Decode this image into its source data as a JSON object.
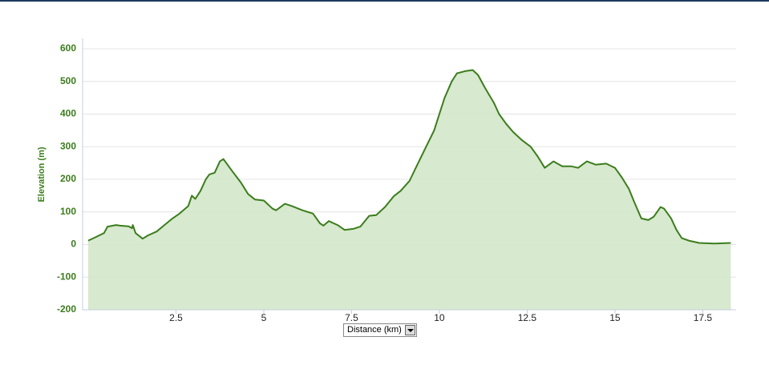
{
  "chart_data": {
    "type": "area",
    "y_label": "Elevation (m)",
    "x_label": "Distance (km)",
    "x": [
      0,
      0.2,
      0.45,
      0.55,
      0.8,
      0.9,
      1.15,
      1.25,
      1.27,
      1.35,
      1.55,
      1.7,
      1.95,
      2.15,
      2.4,
      2.6,
      2.85,
      2.95,
      3.05,
      3.2,
      3.35,
      3.45,
      3.6,
      3.75,
      3.85,
      4.1,
      4.35,
      4.55,
      4.75,
      5.0,
      5.25,
      5.35,
      5.6,
      5.8,
      6.1,
      6.4,
      6.6,
      6.7,
      6.85,
      7.1,
      7.3,
      7.55,
      7.75,
      8.0,
      8.2,
      8.45,
      8.7,
      8.9,
      9.15,
      9.35,
      9.6,
      9.85,
      10.0,
      10.15,
      10.35,
      10.5,
      10.75,
      10.95,
      11.1,
      11.3,
      11.55,
      11.7,
      11.9,
      12.1,
      12.35,
      12.6,
      12.8,
      13.0,
      13.25,
      13.5,
      13.75,
      13.95,
      14.2,
      14.45,
      14.75,
      15.0,
      15.2,
      15.4,
      15.55,
      15.75,
      15.95,
      16.1,
      16.3,
      16.4,
      16.6,
      16.75,
      16.9,
      17.1,
      17.4,
      17.85,
      18.3
    ],
    "values": [
      12,
      22,
      35,
      55,
      60,
      58,
      56,
      50,
      60,
      35,
      18,
      28,
      40,
      58,
      80,
      95,
      118,
      150,
      140,
      165,
      200,
      215,
      220,
      255,
      262,
      225,
      190,
      155,
      138,
      135,
      110,
      105,
      125,
      118,
      105,
      95,
      65,
      58,
      72,
      60,
      45,
      48,
      55,
      88,
      90,
      115,
      148,
      165,
      195,
      240,
      295,
      350,
      400,
      450,
      500,
      525,
      532,
      535,
      520,
      480,
      435,
      400,
      370,
      345,
      320,
      300,
      270,
      235,
      255,
      240,
      240,
      235,
      255,
      245,
      248,
      235,
      205,
      170,
      130,
      80,
      75,
      85,
      115,
      110,
      80,
      45,
      20,
      12,
      5,
      3,
      5
    ],
    "color": "#3b7d1c",
    "fill": "#d3e7c9",
    "xlim": [
      -0.16,
      18.45
    ],
    "ylim": [
      -200,
      600
    ],
    "xticks": [
      2.5,
      5,
      7.5,
      10,
      12.5,
      15,
      17.5
    ],
    "yticks": [
      -200,
      -100,
      0,
      100,
      200,
      300,
      400,
      500,
      600
    ],
    "grid": true
  }
}
